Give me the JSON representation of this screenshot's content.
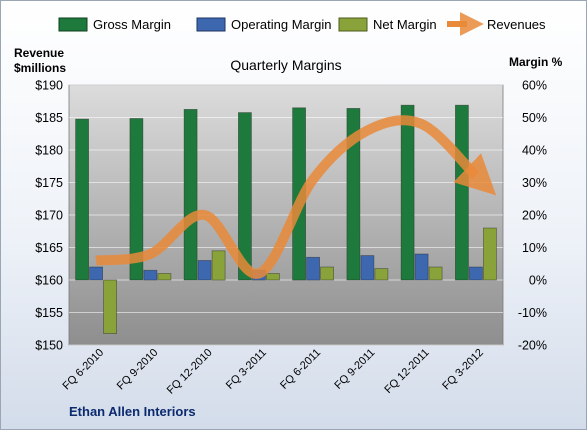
{
  "chart_data": {
    "type": "bar",
    "title": "Quarterly Margins",
    "y_left_label": [
      "Revenue",
      "$millions"
    ],
    "y_right_label": "Margin %",
    "footer": "Ethan Allen Interiors",
    "categories": [
      "FQ 6-2010",
      "FQ 9-2010",
      "FQ 12-2010",
      "FQ 3-2011",
      "FQ 6-2011",
      "FQ 9-2011",
      "FQ 12-2011",
      "FQ 3-2012"
    ],
    "y_left_range": [
      150,
      190
    ],
    "y_left_ticks": [
      "$150",
      "$155",
      "$160",
      "$165",
      "$170",
      "$175",
      "$180",
      "$185",
      "$190"
    ],
    "y_right_range": [
      -20,
      60
    ],
    "y_right_ticks": [
      "-20%",
      "-10%",
      "0%",
      "10%",
      "20%",
      "30%",
      "40%",
      "50%",
      "60%"
    ],
    "series": [
      {
        "name": "Gross Margin",
        "axis": "right",
        "color": "#1e7a3c",
        "values": [
          49.5,
          49.7,
          52.5,
          51.5,
          53.0,
          52.8,
          53.8,
          53.8
        ]
      },
      {
        "name": "Operating Margin",
        "axis": "right",
        "color": "#3d68b0",
        "values": [
          4.0,
          3.0,
          6.0,
          3.0,
          7.0,
          7.5,
          8.0,
          4.0
        ]
      },
      {
        "name": "Net Margin",
        "axis": "right",
        "color": "#8aa23a",
        "values": [
          -16.5,
          2.0,
          9.0,
          2.0,
          4.0,
          3.5,
          4.0,
          16.0
        ]
      },
      {
        "name": "Revenues",
        "axis": "left",
        "type": "line",
        "color": "#e98a3a",
        "values": [
          163,
          164,
          170,
          161,
          175.5,
          183,
          184,
          176
        ]
      }
    ],
    "grid": true,
    "legend_position": "top"
  }
}
